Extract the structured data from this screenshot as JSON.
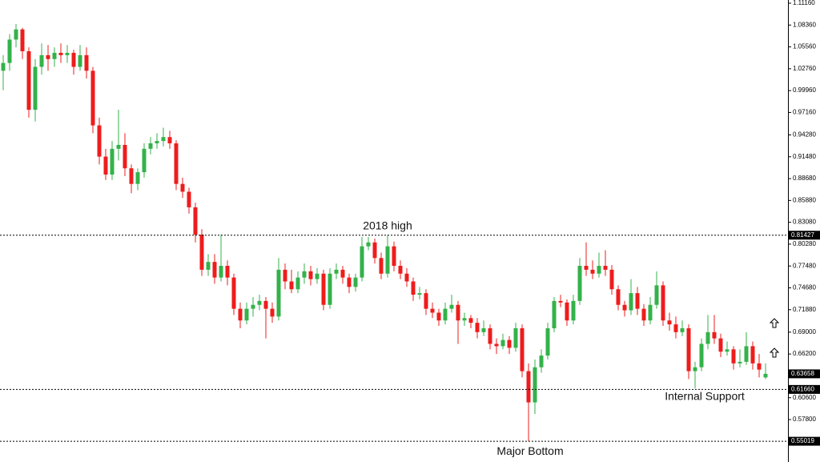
{
  "chart_data": {
    "type": "candlestick",
    "ylim": [
      0.5236,
      1.1157
    ],
    "yticks": [
      {
        "value": 1.1116,
        "label": "1.11160"
      },
      {
        "value": 1.0836,
        "label": "1.08360"
      },
      {
        "value": 1.0556,
        "label": "1.05560"
      },
      {
        "value": 1.0276,
        "label": "1.02760"
      },
      {
        "value": 0.9996,
        "label": "0.99960"
      },
      {
        "value": 0.9716,
        "label": "0.97160"
      },
      {
        "value": 0.9428,
        "label": "0.94280"
      },
      {
        "value": 0.9148,
        "label": "0.91480"
      },
      {
        "value": 0.8868,
        "label": "0.88680"
      },
      {
        "value": 0.8588,
        "label": "0.85880"
      },
      {
        "value": 0.8308,
        "label": "0.83080"
      },
      {
        "value": 0.8028,
        "label": "0.80280"
      },
      {
        "value": 0.7748,
        "label": "0.77480"
      },
      {
        "value": 0.7468,
        "label": "0.74680"
      },
      {
        "value": 0.7188,
        "label": "0.71880"
      },
      {
        "value": 0.69,
        "label": "0.69000"
      },
      {
        "value": 0.662,
        "label": "0.66200"
      },
      {
        "value": 0.606,
        "label": "0.60600"
      },
      {
        "value": 0.578,
        "label": "0.57800"
      }
    ],
    "levels": [
      {
        "value": 0.81427,
        "label": "0.81427",
        "note": "2018 high"
      },
      {
        "value": 0.6166,
        "label": "0.61660",
        "note": "Internal Support"
      },
      {
        "value": 0.55019,
        "label": "0.55019",
        "note": "Major Bottom"
      }
    ],
    "up_color": "#33b24a",
    "down_color": "#ee1c1c",
    "ohlc": [
      [
        1.025,
        1.045,
        1.0,
        1.035
      ],
      [
        1.035,
        1.072,
        1.025,
        1.065
      ],
      [
        1.065,
        1.085,
        1.055,
        1.078
      ],
      [
        1.078,
        1.08,
        1.04,
        1.05
      ],
      [
        1.05,
        1.055,
        0.965,
        0.975
      ],
      [
        0.975,
        1.04,
        0.96,
        1.03
      ],
      [
        1.03,
        1.06,
        1.02,
        1.045
      ],
      [
        1.045,
        1.058,
        1.025,
        1.04
      ],
      [
        1.04,
        1.055,
        1.03,
        1.048
      ],
      [
        1.048,
        1.06,
        1.035,
        1.045
      ],
      [
        1.045,
        1.058,
        1.035,
        1.048
      ],
      [
        1.048,
        1.052,
        1.02,
        1.03
      ],
      [
        1.03,
        1.058,
        1.025,
        1.045
      ],
      [
        1.045,
        1.055,
        1.015,
        1.025
      ],
      [
        1.025,
        1.03,
        0.945,
        0.955
      ],
      [
        0.955,
        0.965,
        0.905,
        0.915
      ],
      [
        0.915,
        0.925,
        0.885,
        0.892
      ],
      [
        0.892,
        0.935,
        0.885,
        0.925
      ],
      [
        0.925,
        0.975,
        0.91,
        0.93
      ],
      [
        0.93,
        0.945,
        0.89,
        0.9
      ],
      [
        0.9,
        0.905,
        0.868,
        0.88
      ],
      [
        0.88,
        0.9,
        0.872,
        0.895
      ],
      [
        0.895,
        0.932,
        0.888,
        0.925
      ],
      [
        0.925,
        0.94,
        0.918,
        0.932
      ],
      [
        0.932,
        0.945,
        0.925,
        0.935
      ],
      [
        0.935,
        0.952,
        0.928,
        0.94
      ],
      [
        0.94,
        0.948,
        0.925,
        0.932
      ],
      [
        0.932,
        0.936,
        0.872,
        0.88
      ],
      [
        0.88,
        0.888,
        0.862,
        0.87
      ],
      [
        0.87,
        0.875,
        0.842,
        0.85
      ],
      [
        0.85,
        0.856,
        0.805,
        0.815
      ],
      [
        0.815,
        0.822,
        0.762,
        0.77
      ],
      [
        0.77,
        0.79,
        0.762,
        0.78
      ],
      [
        0.78,
        0.79,
        0.752,
        0.76
      ],
      [
        0.76,
        0.815,
        0.755,
        0.775
      ],
      [
        0.775,
        0.782,
        0.75,
        0.76
      ],
      [
        0.76,
        0.765,
        0.712,
        0.72
      ],
      [
        0.72,
        0.728,
        0.695,
        0.705
      ],
      [
        0.705,
        0.728,
        0.7,
        0.72
      ],
      [
        0.72,
        0.735,
        0.71,
        0.725
      ],
      [
        0.725,
        0.738,
        0.718,
        0.73
      ],
      [
        0.73,
        0.735,
        0.682,
        0.72
      ],
      [
        0.72,
        0.728,
        0.702,
        0.71
      ],
      [
        0.71,
        0.785,
        0.705,
        0.77
      ],
      [
        0.77,
        0.778,
        0.745,
        0.755
      ],
      [
        0.755,
        0.77,
        0.74,
        0.745
      ],
      [
        0.745,
        0.768,
        0.74,
        0.76
      ],
      [
        0.76,
        0.778,
        0.752,
        0.768
      ],
      [
        0.768,
        0.775,
        0.75,
        0.758
      ],
      [
        0.758,
        0.772,
        0.752,
        0.765
      ],
      [
        0.765,
        0.77,
        0.718,
        0.725
      ],
      [
        0.725,
        0.772,
        0.72,
        0.765
      ],
      [
        0.765,
        0.778,
        0.758,
        0.77
      ],
      [
        0.77,
        0.775,
        0.752,
        0.76
      ],
      [
        0.76,
        0.765,
        0.74,
        0.748
      ],
      [
        0.748,
        0.765,
        0.742,
        0.76
      ],
      [
        0.76,
        0.812,
        0.755,
        0.8
      ],
      [
        0.8,
        0.812,
        0.795,
        0.805
      ],
      [
        0.805,
        0.81,
        0.778,
        0.785
      ],
      [
        0.785,
        0.792,
        0.758,
        0.765
      ],
      [
        0.765,
        0.81427,
        0.76,
        0.8
      ],
      [
        0.8,
        0.806,
        0.768,
        0.775
      ],
      [
        0.775,
        0.782,
        0.758,
        0.765
      ],
      [
        0.765,
        0.772,
        0.748,
        0.755
      ],
      [
        0.755,
        0.76,
        0.73,
        0.738
      ],
      [
        0.738,
        0.748,
        0.732,
        0.74
      ],
      [
        0.74,
        0.745,
        0.712,
        0.72
      ],
      [
        0.72,
        0.728,
        0.708,
        0.715
      ],
      [
        0.715,
        0.72,
        0.698,
        0.705
      ],
      [
        0.705,
        0.728,
        0.7,
        0.72
      ],
      [
        0.72,
        0.738,
        0.715,
        0.725
      ],
      [
        0.725,
        0.73,
        0.675,
        0.705
      ],
      [
        0.705,
        0.715,
        0.698,
        0.708
      ],
      [
        0.708,
        0.712,
        0.695,
        0.702
      ],
      [
        0.702,
        0.708,
        0.682,
        0.69
      ],
      [
        0.69,
        0.705,
        0.685,
        0.695
      ],
      [
        0.695,
        0.7,
        0.668,
        0.675
      ],
      [
        0.675,
        0.682,
        0.662,
        0.672
      ],
      [
        0.672,
        0.688,
        0.668,
        0.68
      ],
      [
        0.68,
        0.685,
        0.662,
        0.67
      ],
      [
        0.67,
        0.702,
        0.665,
        0.695
      ],
      [
        0.695,
        0.7,
        0.632,
        0.64
      ],
      [
        0.64,
        0.65,
        0.55019,
        0.6
      ],
      [
        0.6,
        0.655,
        0.585,
        0.645
      ],
      [
        0.645,
        0.668,
        0.638,
        0.66
      ],
      [
        0.66,
        0.702,
        0.655,
        0.695
      ],
      [
        0.695,
        0.735,
        0.69,
        0.73
      ],
      [
        0.73,
        0.738,
        0.722,
        0.728
      ],
      [
        0.728,
        0.732,
        0.698,
        0.705
      ],
      [
        0.705,
        0.738,
        0.7,
        0.73
      ],
      [
        0.73,
        0.785,
        0.725,
        0.775
      ],
      [
        0.775,
        0.805,
        0.762,
        0.77
      ],
      [
        0.77,
        0.782,
        0.758,
        0.765
      ],
      [
        0.765,
        0.792,
        0.76,
        0.775
      ],
      [
        0.775,
        0.795,
        0.762,
        0.77
      ],
      [
        0.77,
        0.776,
        0.738,
        0.745
      ],
      [
        0.745,
        0.75,
        0.718,
        0.725
      ],
      [
        0.725,
        0.73,
        0.71,
        0.718
      ],
      [
        0.718,
        0.758,
        0.712,
        0.74
      ],
      [
        0.74,
        0.748,
        0.712,
        0.72
      ],
      [
        0.72,
        0.726,
        0.698,
        0.705
      ],
      [
        0.705,
        0.735,
        0.7,
        0.725
      ],
      [
        0.725,
        0.768,
        0.72,
        0.75
      ],
      [
        0.75,
        0.755,
        0.698,
        0.705
      ],
      [
        0.705,
        0.715,
        0.692,
        0.7
      ],
      [
        0.7,
        0.71,
        0.682,
        0.69
      ],
      [
        0.69,
        0.705,
        0.685,
        0.695
      ],
      [
        0.695,
        0.7,
        0.63,
        0.64
      ],
      [
        0.64,
        0.652,
        0.618,
        0.645
      ],
      [
        0.645,
        0.682,
        0.64,
        0.675
      ],
      [
        0.675,
        0.712,
        0.668,
        0.69
      ],
      [
        0.69,
        0.712,
        0.675,
        0.682
      ],
      [
        0.682,
        0.688,
        0.658,
        0.665
      ],
      [
        0.665,
        0.678,
        0.66,
        0.668
      ],
      [
        0.668,
        0.672,
        0.642,
        0.65
      ],
      [
        0.65,
        0.668,
        0.645,
        0.652
      ],
      [
        0.652,
        0.69,
        0.648,
        0.672
      ],
      [
        0.672,
        0.678,
        0.642,
        0.65
      ],
      [
        0.65,
        0.662,
        0.632,
        0.642
      ],
      [
        0.632,
        0.65,
        0.63,
        0.63658
      ]
    ]
  }
}
